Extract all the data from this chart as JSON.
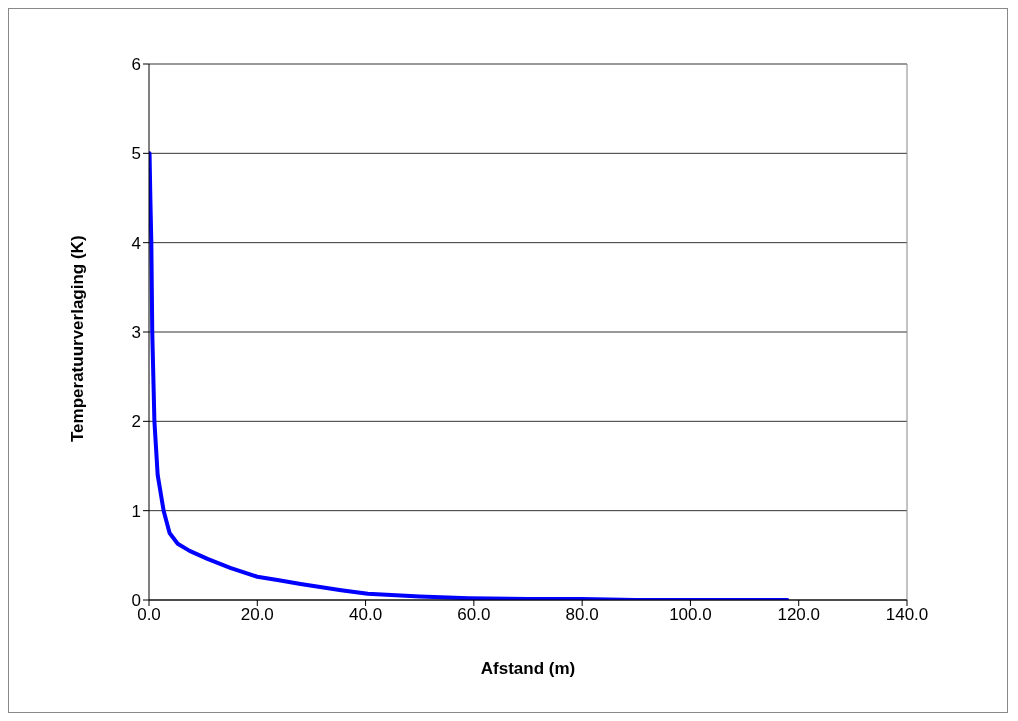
{
  "chart_data": {
    "type": "line",
    "xlabel": "Afstand (m)",
    "ylabel": "Temperatuurverlaging (K)",
    "series": [
      {
        "color": "#0000ff",
        "x": [
          0.1,
          0.25,
          0.43,
          0.6,
          1.0,
          1.6,
          2.7,
          3.8,
          5.3,
          7.5,
          10.8,
          15,
          20,
          24,
          28,
          35.5,
          40.4,
          50,
          59,
          70,
          80,
          90,
          100,
          110,
          117.9
        ],
        "values": [
          5.0,
          4.5,
          4.0,
          3.0,
          2.0,
          1.4,
          1.0,
          0.75,
          0.63,
          0.55,
          0.46,
          0.36,
          0.26,
          0.22,
          0.18,
          0.11,
          0.07,
          0.04,
          0.02,
          0.01,
          0.01,
          0.0,
          0.0,
          0.0,
          0.0
        ]
      }
    ],
    "xlim": [
      0,
      140
    ],
    "xticks": [
      {
        "value": 0,
        "label": "0.0"
      },
      {
        "value": 20,
        "label": "20.0"
      },
      {
        "value": 40,
        "label": "40.0"
      },
      {
        "value": 60,
        "label": "60.0"
      },
      {
        "value": 80,
        "label": "80.0"
      },
      {
        "value": 100,
        "label": "100.0"
      },
      {
        "value": 120,
        "label": "120.0"
      },
      {
        "value": 140,
        "label": "140.0"
      }
    ],
    "ylim": [
      0,
      6
    ],
    "yticks": [
      0,
      1,
      2,
      3,
      4,
      5,
      6
    ],
    "grid": "y",
    "legend": false,
    "marker": "none",
    "line_style": "solid"
  }
}
